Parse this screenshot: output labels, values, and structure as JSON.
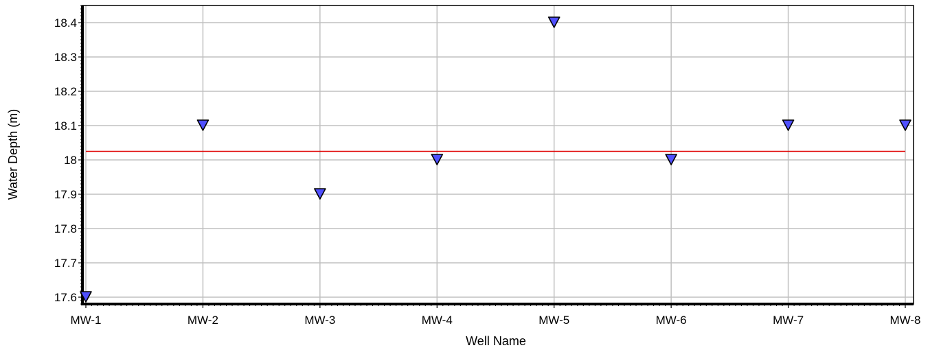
{
  "chart_data": {
    "type": "scatter",
    "title": "",
    "xlabel": "Well Name",
    "ylabel": "Water Depth (m)",
    "categories": [
      "MW-1",
      "MW-2",
      "MW-3",
      "MW-4",
      "MW-5",
      "MW-6",
      "MW-7",
      "MW-8"
    ],
    "values": [
      17.6,
      18.1,
      17.9,
      18.0,
      18.4,
      18.0,
      18.1,
      18.1
    ],
    "reference_line": 18.025,
    "ylim": [
      17.58,
      18.45
    ],
    "yticks": [
      17.6,
      17.7,
      17.8,
      17.9,
      18.0,
      18.1,
      18.2,
      18.3,
      18.4
    ],
    "ytick_labels": [
      "17.6",
      "17.7",
      "17.8",
      "17.9",
      "18",
      "18.1",
      "18.2",
      "18.3",
      "18.4"
    ],
    "grid": true,
    "marker": "down-triangle",
    "colors": {
      "marker": "#5050ff",
      "marker_edge": "#000000",
      "reference_line": "#e00000",
      "grid": "#c0c0c0"
    }
  }
}
